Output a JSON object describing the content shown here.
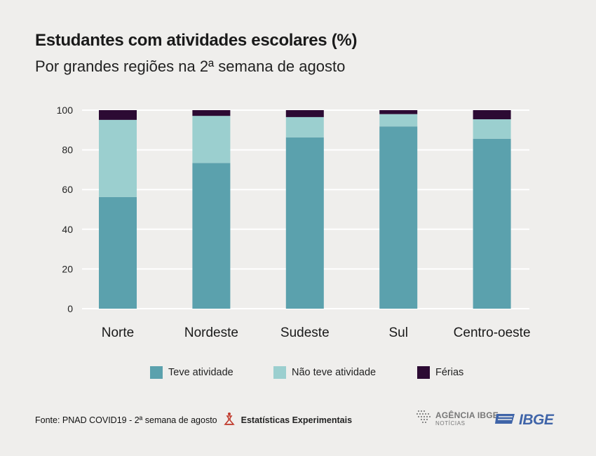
{
  "header": {
    "title": "Estudantes com atividades escolares (%)",
    "subtitle": "Por grandes regiões na 2ª semana de agosto"
  },
  "chart_data": {
    "type": "bar",
    "stacked": true,
    "title": "Estudantes com atividades escolares (%)",
    "subtitle": "Por grandes regiões na 2ª semana de agosto",
    "categories": [
      "Norte",
      "Nordeste",
      "Sudeste",
      "Sul",
      "Centro-oeste"
    ],
    "series": [
      {
        "name": "Teve atividade",
        "color": "#5ba1ad",
        "values": [
          56.2,
          73.4,
          86.3,
          91.8,
          85.6
        ]
      },
      {
        "name": "Não teve atividade",
        "color": "#9bcfcf",
        "values": [
          38.9,
          23.7,
          10.2,
          6.2,
          9.8
        ]
      },
      {
        "name": "Férias",
        "color": "#2c0a33",
        "values": [
          4.9,
          2.9,
          3.5,
          2.0,
          4.6
        ]
      }
    ],
    "yticks": [
      0,
      20,
      40,
      60,
      80,
      100
    ],
    "ylim": [
      0,
      100
    ],
    "grid": true,
    "legend": "bottom"
  },
  "footer": {
    "source": "Fonte: PNAD COVID19 - 2ª semana de agosto",
    "experimental": "Estatísticas Experimentais",
    "agencia_main": "AGÊNCIA IBGE",
    "agencia_sub": "NOTÍCIAS",
    "ibge": "IBGE"
  },
  "colors": {
    "background": "#efeeec",
    "grid": "#ffffff",
    "experimental_icon": "#c0392b",
    "ibge_blue": "#3f64a8"
  }
}
